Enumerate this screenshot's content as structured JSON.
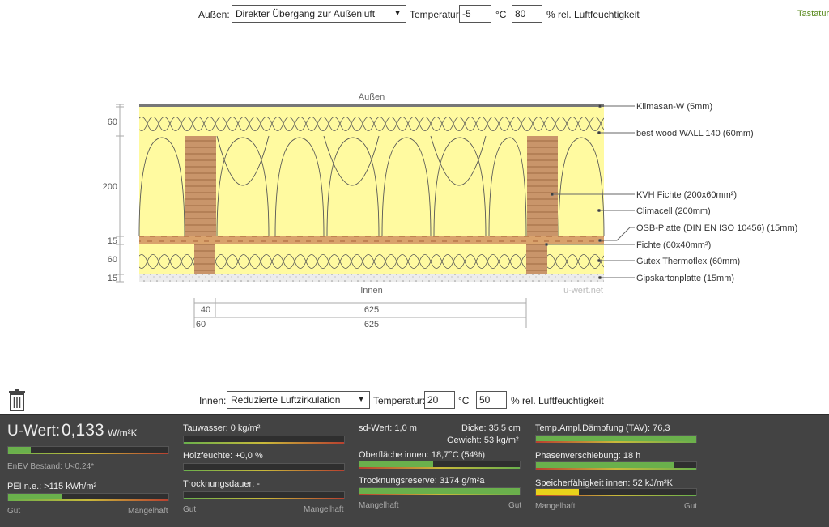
{
  "top": {
    "outside_label": "Außen:",
    "outside_select": "Direkter Übergang zur Außenluft",
    "temp_label": "Temperatur:",
    "temp_value": "-5",
    "temp_unit": "°C",
    "humidity_value": "80",
    "humidity_label": "% rel. Luftfeuchtigkeit",
    "keyboard_link": "Tastatur"
  },
  "diagram": {
    "outside_caption": "Außen",
    "inside_caption": "Innen",
    "watermark": "u-wert.net",
    "thickness_labels": [
      "60",
      "200",
      "15",
      "60",
      "15"
    ],
    "dim_row1": [
      "40",
      "625"
    ],
    "dim_row2": [
      "60",
      "625"
    ],
    "layers": [
      "Klimasan-W (5mm)",
      "best wood WALL 140 (60mm)",
      "KVH Fichte (200x60mm²)",
      "Climacell (200mm)",
      "OSB-Platte (DIN EN ISO 10456) (15mm)",
      "Fichte (60x40mm²)",
      "Gutex Thermoflex (60mm)",
      "Gipskartonplatte (15mm)"
    ]
  },
  "bottom": {
    "inside_label": "Innen:",
    "inside_select": "Reduzierte Luftzirkulation",
    "temp_label": "Temperatur:",
    "temp_value": "20",
    "temp_unit": "°C",
    "humidity_value": "50",
    "humidity_label": "% rel. Luftfeuchtigkeit",
    "trash_icon": "trash-icon"
  },
  "results": {
    "uwert_label": "U-Wert:",
    "uwert_value": "0,133",
    "uwert_unit": "W/m²K",
    "uwert_level": 0.14,
    "enev": "EnEV Bestand: U<0.24*",
    "pei": "PEI n.e.: >115 kWh/m²",
    "pei_level": 0.34,
    "tauwasser": "Tauwasser: 0 kg/m²",
    "tauwasser_level": 0.0,
    "holzfeuchte": "Holzfeuchte: +0,0 %",
    "holzfeuchte_level": 0.0,
    "trocknungsdauer": "Trocknungsdauer: -",
    "trocknungsdauer_level": 0.0,
    "sd_wert": "sd-Wert: 1,0 m",
    "dicke": "Dicke: 35,5 cm",
    "gewicht": "Gewicht: 53 kg/m²",
    "oberflaeche": "Oberfläche innen: 18,7°C (54%)",
    "oberflaeche_level": 0.46,
    "trocknungsreserve": "Trocknungsreserve: 3174 g/m²a",
    "trocknungsreserve_level": 1.0,
    "tav": "Temp.Ampl.Dämpfung (TAV): 76,3",
    "tav_level": 1.0,
    "phase": "Phasenverschiebung: 18 h",
    "phase_level": 0.86,
    "speicher": "Speicherfähigkeit innen: 52 kJ/m²K",
    "speicher_level": 0.27,
    "scale_good": "Gut",
    "scale_bad": "Mangelhaft",
    "colors": {
      "green": "#6ab04c",
      "yellow": "#e8d21a",
      "red": "#b8402f"
    }
  }
}
